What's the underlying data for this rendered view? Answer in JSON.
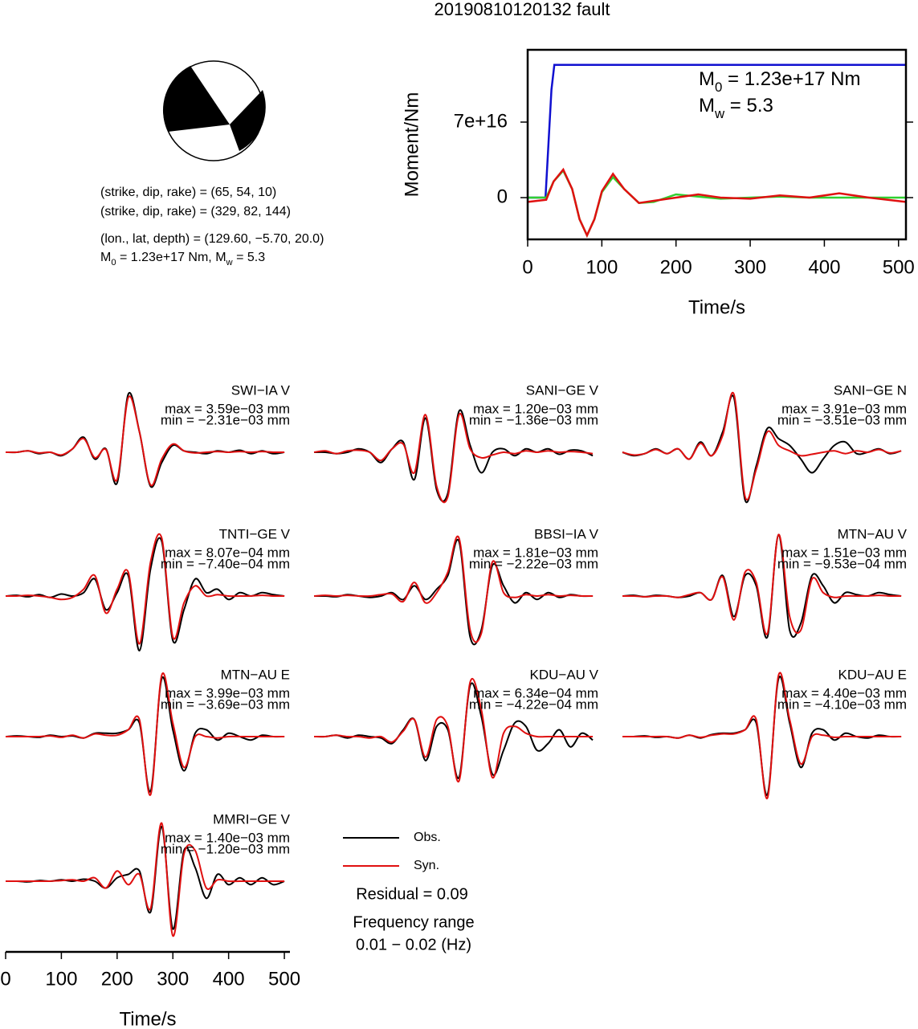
{
  "title": "20190810120132 fault",
  "focal_mechanism": {
    "lines": [
      "(strike, dip, rake) = (65, 54, 10)",
      "(strike, dip, rake) = (329, 82, 144)",
      "(lon., lat, depth) = (129.60, −5.70, 20.0)"
    ],
    "moment_line": [
      "M",
      "0",
      " = 1.23e+17 Nm, M",
      "w",
      " = 5.3"
    ]
  },
  "chart_data": [
    {
      "type": "line",
      "ylabel": "Moment/Nm",
      "xlabel": "Time/s",
      "xlim": [
        0,
        510
      ],
      "xticks": [
        0,
        100,
        200,
        300,
        400,
        500
      ],
      "ylim": [
        -3.87e+16,
        1.37e+17
      ],
      "yticks": [
        0,
        {
          "value": 7e+16,
          "label": "7e+16"
        }
      ],
      "annotations": [
        [
          "M",
          "0",
          " = 1.23e+17 Nm"
        ],
        [
          "M",
          "w",
          " = 5.3"
        ]
      ],
      "series": [
        {
          "color": "#1010d0",
          "x": [
            0,
            24,
            28,
            32,
            36,
            510
          ],
          "values": [
            0,
            0,
            5e+16,
            1e+17,
            1.23e+17,
            1.23e+17
          ]
        },
        {
          "color": "#30d030",
          "x": [
            0,
            25,
            35,
            48,
            60,
            70,
            80,
            90,
            100,
            115,
            130,
            150,
            170,
            200,
            230,
            260,
            300,
            340,
            380,
            420,
            460,
            510
          ],
          "values": [
            0,
            0,
            1.5e+16,
            2.5e+16,
            8000000000000000.0,
            -2e+16,
            -3.5e+16,
            -2e+16,
            5000000000000000.0,
            1.9e+16,
            8000000000000000.0,
            -5000000000000000.0,
            -4000000000000000.0,
            3000000000000000.0,
            1000000000000000.0,
            -1000000000000000.0,
            0,
            1000000000000000.0,
            0,
            0,
            0,
            0
          ]
        },
        {
          "color": "#e01010",
          "x": [
            0,
            25,
            35,
            48,
            60,
            70,
            80,
            90,
            100,
            115,
            130,
            150,
            170,
            200,
            230,
            260,
            300,
            340,
            380,
            420,
            460,
            510
          ],
          "values": [
            -4000000000000000.0,
            -2000000000000000.0,
            1.5e+16,
            2.6e+16,
            8000000000000000.0,
            -2e+16,
            -3.5e+16,
            -2e+16,
            6000000000000000.0,
            2.2e+16,
            8000000000000000.0,
            -5000000000000000.0,
            -3000000000000000.0,
            0,
            3000000000000000.0,
            0,
            -1000000000000000.0,
            2000000000000000.0,
            0,
            4000000000000000.0,
            0,
            -4000000000000000.0
          ]
        }
      ]
    },
    {
      "type": "waveforms",
      "xlabel": "Time/s",
      "xlim": [
        0,
        510
      ],
      "xticks": [
        0,
        100,
        200,
        300,
        400,
        500
      ],
      "x": [
        0,
        20,
        40,
        60,
        80,
        100,
        120,
        140,
        160,
        180,
        200,
        220,
        240,
        260,
        280,
        300,
        320,
        340,
        360,
        380,
        400,
        420,
        440,
        460,
        480,
        500
      ],
      "legend": [
        {
          "name": "Obs.",
          "color": "#000000"
        },
        {
          "name": "Syn.",
          "color": "#e01010"
        }
      ],
      "residual": "Residual = 0.09",
      "frequency": [
        "Frequency range",
        "0.01 − 0.02 (Hz)"
      ],
      "panels": [
        {
          "station": "SWI−IA V",
          "max": "max = 3.59e−03 mm",
          "min": "min = −2.31e−03 mm",
          "obs": [
            0,
            0,
            0.02,
            -0.02,
            0,
            -0.05,
            0.05,
            0.22,
            -0.1,
            0.05,
            -0.45,
            0.85,
            0.3,
            -0.5,
            -0.15,
            0.1,
            0.02,
            0,
            -0.02,
            0.02,
            0,
            0.03,
            -0.02,
            0.02,
            -0.02,
            0
          ],
          "syn": [
            0,
            0,
            0.02,
            -0.01,
            0,
            -0.04,
            0.05,
            0.2,
            -0.08,
            0.04,
            -0.4,
            0.8,
            0.3,
            -0.48,
            -0.1,
            0.12,
            0.02,
            -0.01,
            0,
            0.01,
            0,
            0.01,
            0,
            0.01,
            0,
            0
          ]
        },
        {
          "station": "SANI−GE V",
          "max": "max = 1.20e−03 mm",
          "min": "min = −1.36e−03 mm",
          "obs": [
            0,
            0,
            -0.02,
            0,
            0.05,
            0,
            -0.15,
            0.05,
            0.15,
            -0.4,
            0.5,
            -0.55,
            -0.6,
            0.6,
            0.1,
            -0.3,
            0,
            0.05,
            -0.05,
            0.05,
            0,
            0.05,
            -0.03,
            0.03,
            0.02,
            -0.05
          ],
          "syn": [
            0,
            0.02,
            -0.02,
            0.02,
            0.03,
            0,
            -0.12,
            0.05,
            0.12,
            -0.3,
            0.55,
            -0.5,
            -0.65,
            0.55,
            0.05,
            -0.08,
            -0.04,
            0,
            -0.02,
            0.02,
            0,
            0.02,
            0,
            0.01,
            0,
            -0.02
          ]
        },
        {
          "station": "SANI−GE N",
          "max": "max = 3.91e−03 mm",
          "min": "min = −3.51e−03 mm",
          "obs": [
            0,
            -0.05,
            -0.02,
            0.05,
            -0.02,
            0.05,
            -0.1,
            0.15,
            -0.05,
            0.3,
            0.8,
            -0.7,
            -0.2,
            0.35,
            0.2,
            0.1,
            -0.1,
            -0.3,
            -0.1,
            0.1,
            0.15,
            -0.02,
            0,
            0.05,
            -0.02,
            0.02
          ],
          "syn": [
            0,
            -0.04,
            -0.02,
            0.04,
            -0.02,
            0.05,
            -0.1,
            0.13,
            -0.05,
            0.25,
            0.85,
            -0.65,
            -0.25,
            0.3,
            0.1,
            0.02,
            -0.05,
            -0.03,
            0,
            0.02,
            -0.02,
            0.02,
            0,
            0.04,
            -0.01,
            0.02
          ]
        },
        {
          "station": "TNTI−GE V",
          "max": "max = 8.07e−04 mm",
          "min": "min = −7.40e−04 mm",
          "obs": [
            0,
            0.01,
            -0.01,
            0.02,
            -0.02,
            0.03,
            0,
            0.05,
            0.25,
            -0.2,
            0.05,
            0.3,
            -0.8,
            0.4,
            0.8,
            -0.65,
            -0.2,
            0.25,
            0.05,
            0.1,
            -0.05,
            0.05,
            0,
            0.05,
            0.02,
            0
          ],
          "syn": [
            0,
            0,
            0.01,
            0,
            -0.02,
            -0.05,
            -0.02,
            0.1,
            0.3,
            -0.25,
            0.1,
            0.35,
            -0.7,
            0.5,
            0.85,
            -0.6,
            -0.1,
            0.15,
            0,
            0.02,
            0,
            0,
            0,
            0.01,
            0,
            0
          ]
        },
        {
          "station": "BBSI−IA V",
          "max": "max = 1.81e−03 mm",
          "min": "min = −2.22e−03 mm",
          "obs": [
            0,
            0,
            -0.01,
            0.02,
            0,
            -0.02,
            0,
            0.05,
            -0.05,
            0.15,
            -0.05,
            0.1,
            0.3,
            0.8,
            -0.6,
            -0.5,
            0.45,
            0.15,
            -0.1,
            0.05,
            -0.05,
            0.05,
            -0.02,
            0.02,
            0,
            0
          ],
          "syn": [
            0,
            0.01,
            0,
            0.01,
            0,
            0,
            0.02,
            0.03,
            -0.08,
            0.2,
            -0.1,
            0.05,
            0.35,
            0.85,
            -0.5,
            -0.55,
            0.5,
            0.05,
            -0.02,
            0.02,
            0,
            0.02,
            0,
            0.01,
            0,
            0
          ]
        },
        {
          "station": "MTN−AU V",
          "max": "max = 1.51e−03 mm",
          "min": "min = −9.53e−04 mm",
          "obs": [
            0,
            0.01,
            -0.01,
            0.01,
            0,
            -0.02,
            0,
            0.05,
            -0.05,
            0.3,
            -0.3,
            0.3,
            0.15,
            -0.6,
            0.9,
            -0.5,
            -0.4,
            0.3,
            0.15,
            -0.1,
            0.05,
            0.02,
            0,
            0.05,
            0.02,
            0
          ],
          "syn": [
            0,
            0,
            -0.01,
            0,
            0,
            -0.02,
            0.02,
            0.05,
            -0.05,
            0.28,
            -0.35,
            0.35,
            0.2,
            -0.55,
            0.9,
            -0.3,
            -0.5,
            0.25,
            0.05,
            -0.02,
            0,
            0,
            0,
            0.01,
            0,
            0
          ]
        },
        {
          "station": "MTN−AU E",
          "max": "max = 3.99e−03 mm",
          "min": "min = −3.69e−03 mm",
          "obs": [
            0,
            0.01,
            0,
            -0.01,
            0.02,
            0,
            0.01,
            -0.02,
            0.05,
            0.05,
            0.05,
            0.1,
            0.2,
            -0.8,
            0.85,
            0.1,
            -0.5,
            0.05,
            0.1,
            -0.05,
            0.05,
            0,
            -0.05,
            0.02,
            0,
            0
          ],
          "syn": [
            0,
            0,
            0,
            0,
            0.01,
            -0.01,
            0.02,
            -0.02,
            0.04,
            0.02,
            0.02,
            0.1,
            0.25,
            -0.85,
            0.9,
            0.2,
            -0.45,
            0,
            0,
            -0.02,
            0,
            0,
            0,
            0,
            0,
            0
          ]
        },
        {
          "station": "KDU−AU V",
          "max": "max = 6.34e−04 mm",
          "min": "min = −4.22e−04 mm",
          "obs": [
            0,
            0,
            0.02,
            -0.02,
            0.02,
            0,
            -0.02,
            -0.1,
            0.1,
            0.25,
            -0.35,
            0.15,
            0.1,
            -0.6,
            0.75,
            0.3,
            -0.55,
            -0.2,
            0.2,
            0.15,
            -0.2,
            -0.1,
            0.1,
            -0.15,
            0.05,
            -0.05
          ],
          "syn": [
            0,
            0,
            0.02,
            0,
            0,
            -0.02,
            0,
            -0.08,
            0.08,
            0.25,
            -0.3,
            0.25,
            0.15,
            -0.65,
            0.8,
            0.4,
            -0.6,
            0.05,
            0.15,
            0.05,
            0,
            0,
            0,
            0,
            0,
            0
          ]
        },
        {
          "station": "KDU−AU E",
          "max": "max = 4.40e−03 mm",
          "min": "min = −4.10e−03 mm",
          "obs": [
            0,
            0,
            0.01,
            -0.01,
            0,
            -0.02,
            0.02,
            -0.02,
            0.03,
            0.05,
            0.05,
            0.1,
            0.2,
            -0.85,
            0.85,
            0.2,
            -0.45,
            0.05,
            0.1,
            -0.05,
            0.05,
            0,
            -0.02,
            0.02,
            0,
            0
          ],
          "syn": [
            0,
            0,
            0,
            0,
            0,
            -0.02,
            0.02,
            -0.01,
            0.02,
            0.04,
            0.04,
            0.1,
            0.25,
            -0.9,
            0.9,
            0.25,
            -0.4,
            0,
            0.02,
            -0.01,
            0,
            0,
            0,
            0,
            0,
            0
          ]
        },
        {
          "station": "MMRI−GE V",
          "max": "max = 1.40e−03 mm",
          "min": "min = −1.20e−03 mm",
          "obs": [
            0,
            0,
            -0.01,
            0.01,
            0,
            0.02,
            0,
            0.03,
            0,
            -0.1,
            0.05,
            0.1,
            0.15,
            -0.45,
            0.8,
            -0.7,
            0.45,
            0.2,
            -0.25,
            0.1,
            -0.05,
            0.05,
            -0.05,
            0.05,
            -0.05,
            0
          ],
          "syn": [
            0,
            0,
            0,
            0,
            0,
            0.01,
            0.02,
            0,
            0.05,
            -0.1,
            0.15,
            -0.05,
            0.1,
            -0.4,
            0.85,
            -0.8,
            0.4,
            0.45,
            -0.1,
            0.02,
            0,
            0,
            0,
            0,
            0,
            0
          ]
        }
      ]
    }
  ]
}
